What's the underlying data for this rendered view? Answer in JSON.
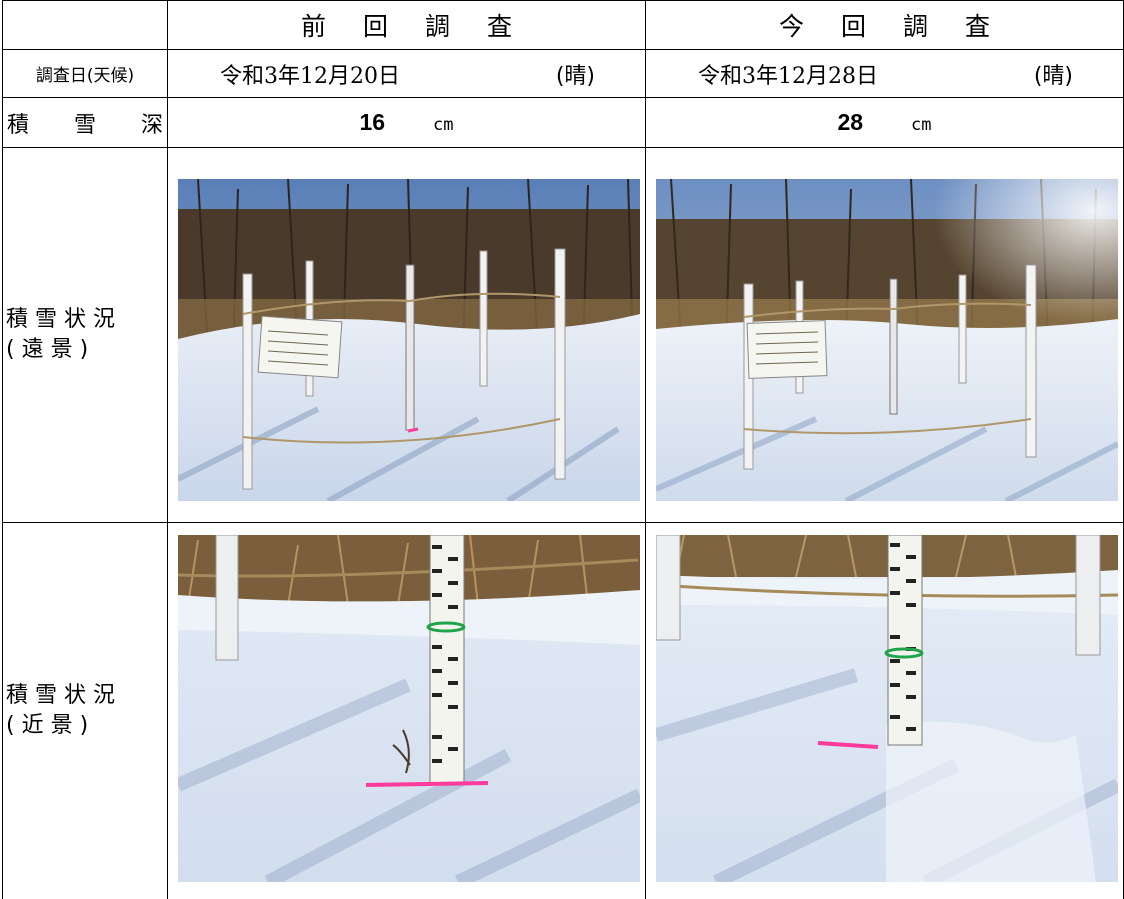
{
  "header": {
    "previous": [
      "前",
      "回",
      "調",
      "査"
    ],
    "current": [
      "今",
      "回",
      "調",
      "査"
    ]
  },
  "rows": {
    "date_label": "調査日(天候)",
    "depth_label": [
      "積",
      "雪",
      "深"
    ],
    "far_label": [
      "積 雪 状 況",
      "( 遠 景 )"
    ],
    "near_label": [
      "積 雪 状 況",
      "( 近 景 )"
    ]
  },
  "previous": {
    "date": "令和3年12月20日",
    "weather": "(晴)",
    "depth_value": "16",
    "depth_unit": "cm"
  },
  "current": {
    "date": "令和3年12月28日",
    "weather": "(晴)",
    "depth_value": "28",
    "depth_unit": "cm"
  },
  "photos": {
    "previous_far": "snow-plot-far-photo",
    "current_far": "snow-plot-far-photo",
    "previous_near": "snow-stake-near-photo",
    "current_near": "snow-stake-near-photo"
  }
}
